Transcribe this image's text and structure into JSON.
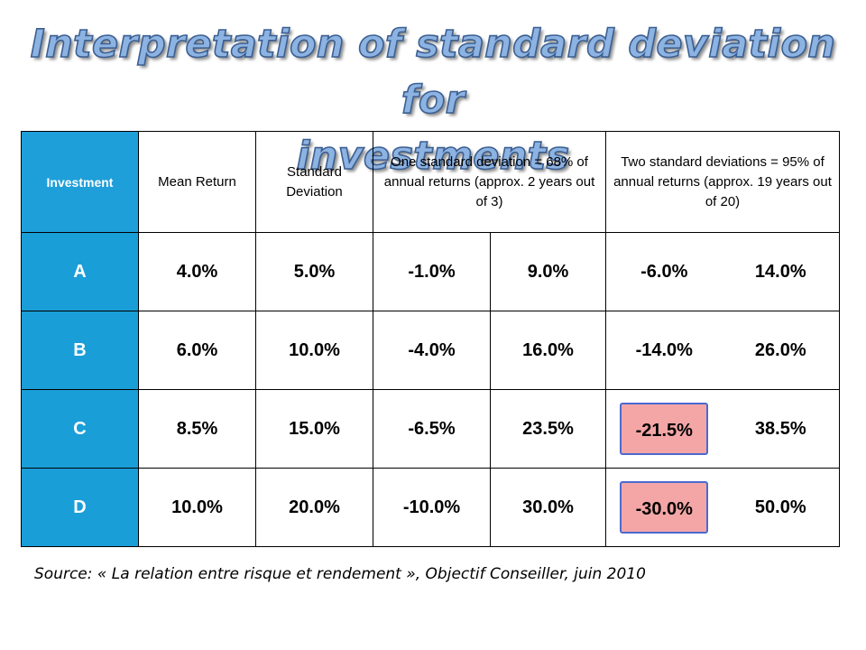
{
  "title": {
    "line1": "Interpretation of standard deviation for",
    "line2": "investments"
  },
  "table": {
    "headers": {
      "investment": "Investment",
      "mean_return": "Mean Return",
      "std_dev": "Standard Deviation",
      "one_sd": "One standard deviation = 68% of annual returns (approx. 2 years out of 3)",
      "two_sd": "Two standard deviations = 95% of annual returns (approx. 19 years out of 20)"
    },
    "rows": [
      {
        "investment": "A",
        "mean": "4.0%",
        "sd": "5.0%",
        "one_low": "-1.0%",
        "one_high": "9.0%",
        "two_low": "-6.0%",
        "two_high": "14.0%"
      },
      {
        "investment": "B",
        "mean": "6.0%",
        "sd": "10.0%",
        "one_low": "-4.0%",
        "one_high": "16.0%",
        "two_low": "-14.0%",
        "two_high": "26.0%"
      },
      {
        "investment": "C",
        "mean": "8.5%",
        "sd": "15.0%",
        "one_low": "-6.5%",
        "one_high": "23.5%",
        "two_low": "-21.5%",
        "two_high": "38.5%"
      },
      {
        "investment": "D",
        "mean": "10.0%",
        "sd": "20.0%",
        "one_low": "-10.0%",
        "one_high": "30.0%",
        "two_low": "-30.0%",
        "two_high": "50.0%"
      }
    ],
    "highlighted_cells": [
      "C.two_low",
      "D.two_low"
    ]
  },
  "source": "Source: « La relation entre risque et rendement », Objectif Conseiller, juin 2010",
  "colors": {
    "investment_column": "#1a9ed8",
    "highlight_fill": "#f4a6a6",
    "highlight_border": "#4a6ad0",
    "title_fill": "#8db3e2"
  }
}
